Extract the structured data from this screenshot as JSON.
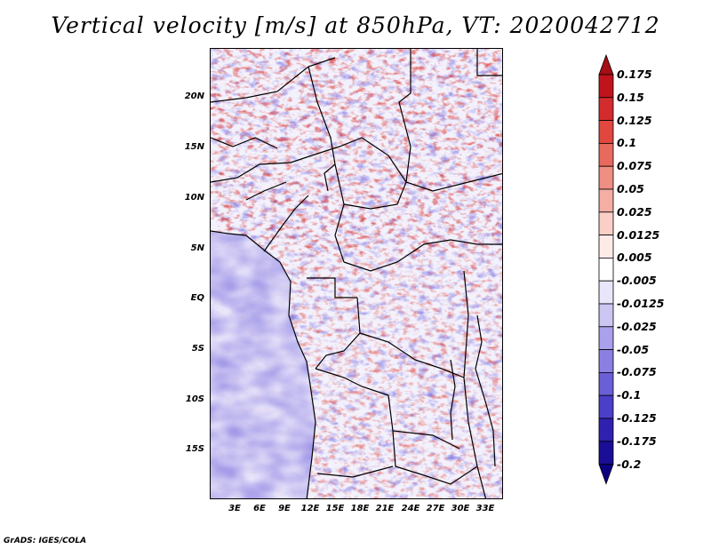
{
  "title": "Vertical velocity [m/s] at 850hPa, VT: 2020042712",
  "footer": "GrADS: IGES/COLA",
  "map": {
    "lat_ticks": [
      "20N",
      "15N",
      "10N",
      "5N",
      "EQ",
      "5S",
      "10S",
      "15S"
    ],
    "lon_ticks": [
      "3E",
      "6E",
      "9E",
      "12E",
      "15E",
      "18E",
      "21E",
      "24E",
      "27E",
      "30E",
      "33E"
    ]
  },
  "colorbar": {
    "labels": [
      "0.175",
      "0.15",
      "0.125",
      "0.1",
      "0.075",
      "0.05",
      "0.025",
      "0.0125",
      "0.005",
      "-0.005",
      "-0.0125",
      "-0.025",
      "-0.05",
      "-0.075",
      "-0.1",
      "-0.125",
      "-0.175",
      "-0.2"
    ],
    "colors": [
      "#a50f15",
      "#c0141c",
      "#d42c2e",
      "#e0473f",
      "#e86a5e",
      "#ef8e82",
      "#f4aea3",
      "#f9cfc8",
      "#fdebe8",
      "#ffffff",
      "#e9e6fb",
      "#ccc6f3",
      "#aaa1ea",
      "#8b80e2",
      "#6b5fd7",
      "#4b3fc7",
      "#3020b0",
      "#1a0d96",
      "#0a0080"
    ]
  }
}
